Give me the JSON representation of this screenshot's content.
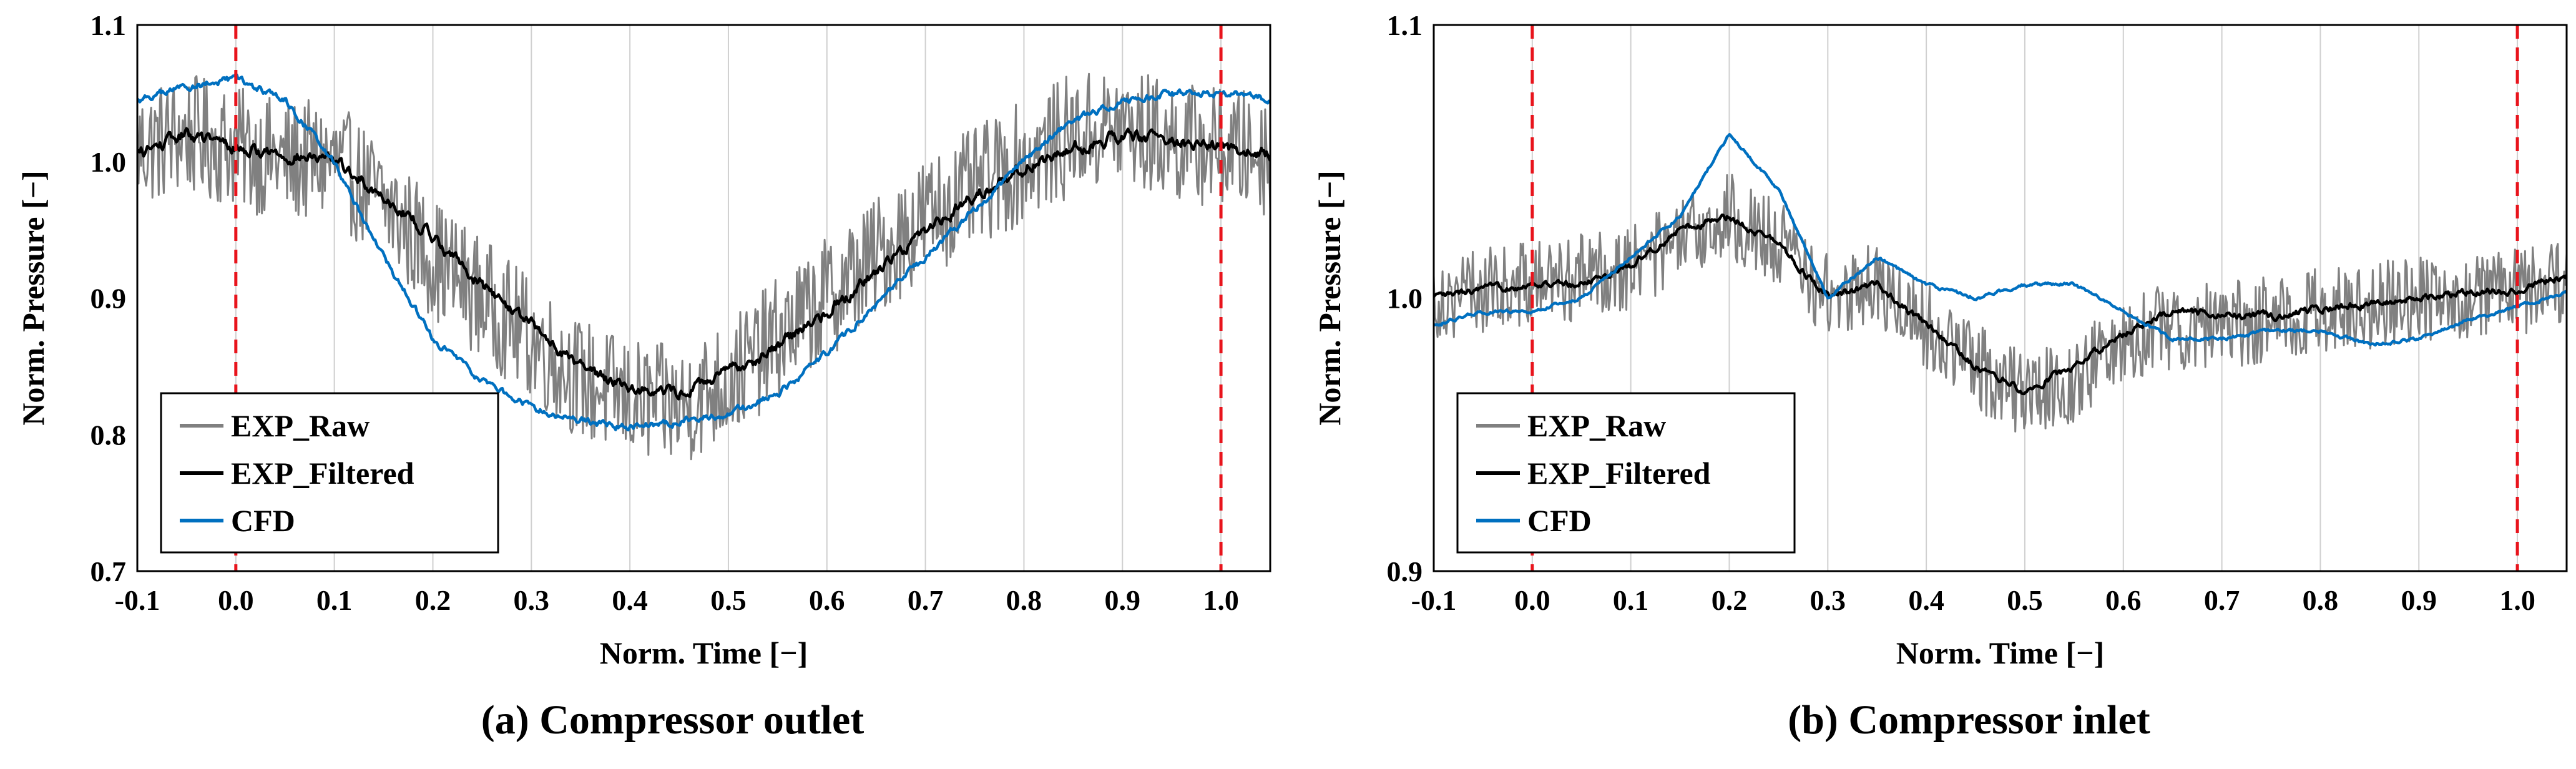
{
  "chart_data": [
    {
      "type": "line",
      "caption": "(a) Compressor outlet",
      "xlabel": "Norm. Time [−]",
      "ylabel": "Norm. Pressure [−]",
      "xlim": [
        -0.1,
        1.05
      ],
      "ylim": [
        0.7,
        1.1
      ],
      "xticks": [
        -0.1,
        0.0,
        0.1,
        0.2,
        0.3,
        0.4,
        0.5,
        0.6,
        0.7,
        0.8,
        0.9,
        1.0
      ],
      "xtick_labels": [
        "-0.1",
        "0.0",
        "0.1",
        "0.2",
        "0.3",
        "0.4",
        "0.5",
        "0.6",
        "0.7",
        "0.8",
        "0.9",
        "1.0"
      ],
      "yticks": [
        0.7,
        0.8,
        0.9,
        1.0,
        1.1
      ],
      "ytick_labels": [
        "0.7",
        "0.8",
        "0.9",
        "1.0",
        "1.1"
      ],
      "grid": "vertical",
      "vlines": [
        0.0,
        1.0
      ],
      "legend": {
        "position": "bottom-left",
        "entries": [
          "EXP_Raw",
          "EXP_Filtered",
          "CFD"
        ]
      },
      "series": [
        {
          "name": "EXP_Raw",
          "color": "#808080",
          "x": [
            -0.1,
            -0.05,
            0.0,
            0.05,
            0.1,
            0.15,
            0.2,
            0.25,
            0.3,
            0.35,
            0.4,
            0.45,
            0.5,
            0.55,
            0.6,
            0.65,
            0.7,
            0.75,
            0.8,
            0.85,
            0.9,
            0.95,
            1.0,
            1.05
          ],
          "y": [
            1.01,
            1.02,
            1.01,
            1.0,
            1.0,
            0.97,
            0.93,
            0.9,
            0.87,
            0.84,
            0.825,
            0.82,
            0.84,
            0.87,
            0.9,
            0.93,
            0.96,
            0.98,
            1.0,
            1.02,
            1.025,
            1.015,
            1.01,
            1.005
          ],
          "noise_amplitude": 0.045
        },
        {
          "name": "EXP_Filtered",
          "color": "#000000",
          "x": [
            -0.1,
            -0.05,
            0.0,
            0.05,
            0.1,
            0.15,
            0.2,
            0.25,
            0.3,
            0.35,
            0.4,
            0.45,
            0.5,
            0.55,
            0.6,
            0.65,
            0.7,
            0.75,
            0.8,
            0.85,
            0.9,
            0.95,
            1.0,
            1.05
          ],
          "y": [
            1.005,
            1.02,
            1.01,
            1.005,
            1.0,
            0.975,
            0.945,
            0.91,
            0.88,
            0.85,
            0.835,
            0.83,
            0.845,
            0.865,
            0.89,
            0.92,
            0.95,
            0.975,
            0.995,
            1.01,
            1.02,
            1.015,
            1.01,
            1.005
          ],
          "noise_amplitude": 0.007
        },
        {
          "name": "CFD",
          "color": "#0070C0",
          "x": [
            -0.1,
            -0.05,
            0.0,
            0.05,
            0.1,
            0.15,
            0.2,
            0.25,
            0.3,
            0.35,
            0.4,
            0.45,
            0.5,
            0.55,
            0.6,
            0.65,
            0.7,
            0.75,
            0.8,
            0.85,
            0.9,
            0.95,
            1.0,
            1.05
          ],
          "y": [
            1.045,
            1.055,
            1.06,
            1.045,
            1.0,
            0.93,
            0.87,
            0.84,
            0.82,
            0.81,
            0.805,
            0.81,
            0.815,
            0.83,
            0.86,
            0.895,
            0.93,
            0.965,
            1.0,
            1.03,
            1.045,
            1.05,
            1.05,
            1.045
          ],
          "noise_amplitude": 0.004
        }
      ]
    },
    {
      "type": "line",
      "caption": "(b) Compressor inlet",
      "xlabel": "Norm. Time [−]",
      "ylabel": "Norm. Pressure [−]",
      "xlim": [
        -0.1,
        1.05
      ],
      "ylim": [
        0.9,
        1.1
      ],
      "xticks": [
        -0.1,
        0.0,
        0.1,
        0.2,
        0.3,
        0.4,
        0.5,
        0.6,
        0.7,
        0.8,
        0.9,
        1.0
      ],
      "xtick_labels": [
        "-0.1",
        "0.0",
        "0.1",
        "0.2",
        "0.3",
        "0.4",
        "0.5",
        "0.6",
        "0.7",
        "0.8",
        "0.9",
        "1.0"
      ],
      "yticks": [
        0.9,
        1.0,
        1.1
      ],
      "ytick_labels": [
        "0.9",
        "1.0",
        "1.1"
      ],
      "grid": "vertical",
      "vlines": [
        0.0,
        1.0
      ],
      "legend": {
        "position": "bottom-left",
        "entries": [
          "EXP_Raw",
          "EXP_Filtered",
          "CFD"
        ]
      },
      "series": [
        {
          "name": "EXP_Raw",
          "color": "#808080",
          "x": [
            -0.1,
            -0.05,
            0.0,
            0.05,
            0.1,
            0.15,
            0.2,
            0.25,
            0.3,
            0.35,
            0.4,
            0.45,
            0.5,
            0.55,
            0.6,
            0.65,
            0.7,
            0.75,
            0.8,
            0.85,
            0.9,
            0.95,
            1.0,
            1.05
          ],
          "y": [
            1.0,
            1.003,
            1.005,
            1.008,
            1.012,
            1.02,
            1.03,
            1.02,
            1.0,
            1.005,
            0.99,
            0.975,
            0.965,
            0.97,
            0.985,
            0.99,
            0.99,
            0.992,
            0.995,
            0.997,
            1.0,
            1.0,
            1.002,
            1.005
          ],
          "noise_amplitude": 0.016
        },
        {
          "name": "EXP_Filtered",
          "color": "#000000",
          "x": [
            -0.1,
            -0.05,
            0.0,
            0.05,
            0.1,
            0.15,
            0.2,
            0.25,
            0.3,
            0.35,
            0.4,
            0.45,
            0.5,
            0.55,
            0.6,
            0.65,
            0.7,
            0.75,
            0.8,
            0.85,
            0.9,
            0.95,
            1.0,
            1.05
          ],
          "y": [
            1.0,
            1.003,
            1.005,
            1.005,
            1.012,
            1.025,
            1.03,
            1.02,
            1.0,
            1.005,
            0.99,
            0.975,
            0.966,
            0.975,
            0.987,
            0.995,
            0.994,
            0.993,
            0.996,
            0.998,
            1.0,
            1.002,
            1.003,
            1.008
          ],
          "noise_amplitude": 0.002
        },
        {
          "name": "CFD",
          "color": "#0070C0",
          "x": [
            -0.1,
            -0.05,
            0.0,
            0.05,
            0.1,
            0.15,
            0.2,
            0.25,
            0.3,
            0.35,
            0.4,
            0.45,
            0.5,
            0.55,
            0.6,
            0.65,
            0.7,
            0.75,
            0.8,
            0.85,
            0.9,
            0.95,
            1.0,
            1.05
          ],
          "y": [
            0.99,
            0.995,
            0.995,
            1.0,
            1.015,
            1.03,
            1.06,
            1.04,
            1.0,
            1.015,
            1.005,
            1.0,
            1.005,
            1.005,
            0.995,
            0.985,
            0.985,
            0.988,
            0.988,
            0.983,
            0.985,
            0.992,
            0.997,
            1.002
          ],
          "noise_amplitude": 0.001
        }
      ]
    }
  ]
}
